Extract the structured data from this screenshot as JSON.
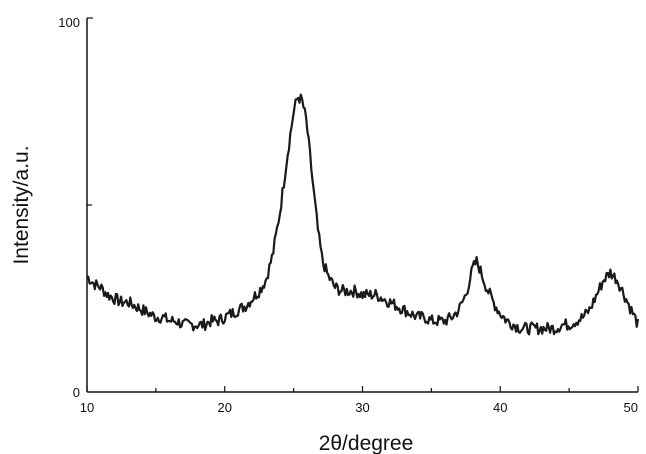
{
  "chart_data": {
    "type": "line",
    "title": "",
    "xlabel": "2θ/degree",
    "ylabel": "Intensity/a.u.",
    "xlim": [
      10,
      50
    ],
    "ylim": [
      0,
      100
    ],
    "x_ticks": [
      "10",
      "20",
      "30",
      "40",
      "50"
    ],
    "y_ticks": [
      "0",
      "100"
    ],
    "grid": false,
    "legend": "none",
    "series": [
      {
        "color": "#1a1a1a",
        "x": [
          10,
          10.5,
          11,
          11.5,
          12,
          12.5,
          13,
          13.5,
          14,
          14.5,
          15,
          15.5,
          16,
          16.5,
          17,
          17.5,
          18,
          18.5,
          19,
          19.5,
          20,
          20.5,
          21,
          21.5,
          22,
          22.5,
          23,
          23.5,
          24,
          24.5,
          25,
          25.3,
          25.6,
          25.9,
          26.2,
          26.5,
          26.8,
          27.1,
          27.5,
          28,
          28.5,
          29,
          29.5,
          30,
          30.5,
          31,
          31.5,
          32,
          32.5,
          33,
          33.5,
          34,
          34.5,
          35,
          35.5,
          36,
          36.5,
          37,
          37.5,
          38,
          38.3,
          38.6,
          39,
          39.5,
          40,
          40.5,
          41,
          41.5,
          42,
          42.5,
          43,
          43.5,
          44,
          44.5,
          45,
          45.5,
          46,
          46.5,
          47,
          47.5,
          48,
          48.5,
          49,
          49.5,
          50
        ],
        "y": [
          31,
          29,
          28,
          26,
          25,
          24,
          24,
          23,
          22,
          21,
          20,
          20,
          19,
          19,
          18,
          18,
          18,
          18,
          19,
          19,
          20,
          21,
          22,
          23,
          25,
          27,
          30,
          37,
          48,
          62,
          75,
          79,
          78,
          73,
          63,
          52,
          42,
          35,
          31,
          28,
          27,
          27,
          27,
          26,
          26,
          26,
          25,
          24,
          23,
          22,
          21,
          20,
          20,
          19,
          19,
          19,
          20,
          22,
          26,
          33,
          35,
          32,
          28,
          24,
          21,
          19,
          18,
          17,
          17,
          17,
          17,
          17,
          17,
          18,
          18,
          19,
          20,
          22,
          26,
          30,
          32,
          30,
          26,
          22,
          18
        ]
      }
    ]
  }
}
